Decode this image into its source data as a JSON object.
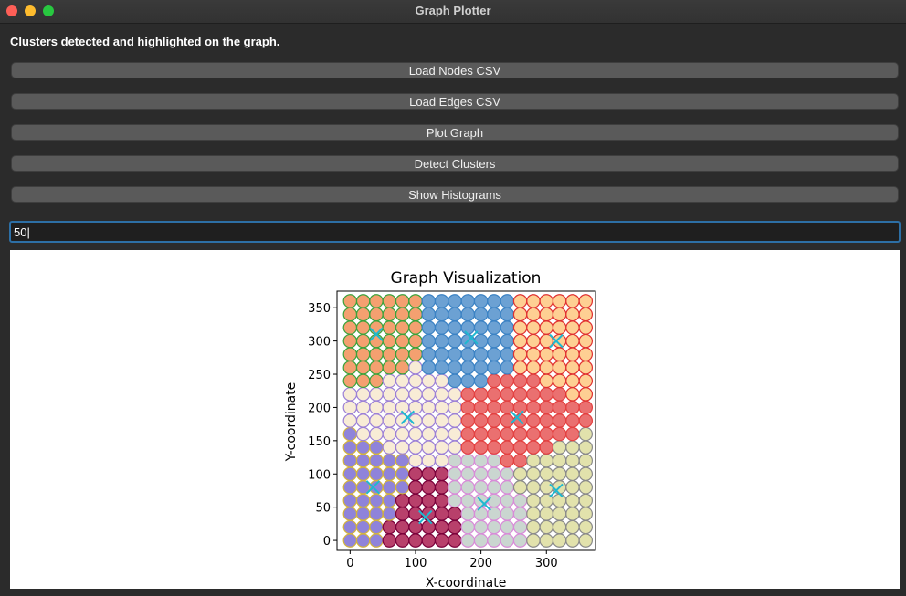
{
  "window": {
    "title": "Graph Plotter"
  },
  "status_message": "Clusters detected and highlighted on the graph.",
  "buttons": {
    "load_nodes": "Load Nodes CSV",
    "load_edges": "Load Edges CSV",
    "plot_graph": "Plot Graph",
    "detect_clusters": "Detect Clusters",
    "show_histograms": "Show Histograms"
  },
  "input": {
    "value": "50"
  },
  "chart_data": {
    "type": "scatter",
    "title": "Graph Visualization",
    "xlabel": "X-coordinate",
    "ylabel": "Y-coordinate",
    "xlim": [
      -20,
      375
    ],
    "ylim": [
      -15,
      375
    ],
    "xticks": [
      0,
      100,
      200,
      300
    ],
    "yticks": [
      0,
      50,
      100,
      150,
      200,
      250,
      300,
      350
    ],
    "grid": false,
    "node_spacing": 20,
    "clusters": [
      {
        "fill": "#f08040",
        "edge": "#3aa23a",
        "centroid": [
          40,
          310
        ]
      },
      {
        "fill": "#3b82c4",
        "edge": "#3b82c4",
        "centroid": [
          185,
          305
        ]
      },
      {
        "fill": "#fdbf6f",
        "edge": "#e03030",
        "centroid": [
          315,
          300
        ]
      },
      {
        "fill": "#f5e6c8",
        "edge": "#9b7fd6",
        "centroid": [
          88,
          185
        ]
      },
      {
        "fill": "#e34040",
        "edge": "#e34040",
        "centroid": [
          255,
          185
        ]
      },
      {
        "fill": "#6a5acd",
        "edge": "#d4b43a",
        "centroid": [
          35,
          80
        ]
      },
      {
        "fill": "#a0003a",
        "edge": "#7a003a",
        "centroid": [
          115,
          35
        ]
      },
      {
        "fill": "#b8c8c0",
        "edge": "#d88ad8",
        "centroid": [
          205,
          55
        ]
      },
      {
        "fill": "#d8d890",
        "edge": "#8a8a8a",
        "centroid": [
          315,
          75
        ]
      }
    ],
    "centroid_marker": {
      "shape": "x",
      "color": "#1fb8d0"
    }
  }
}
